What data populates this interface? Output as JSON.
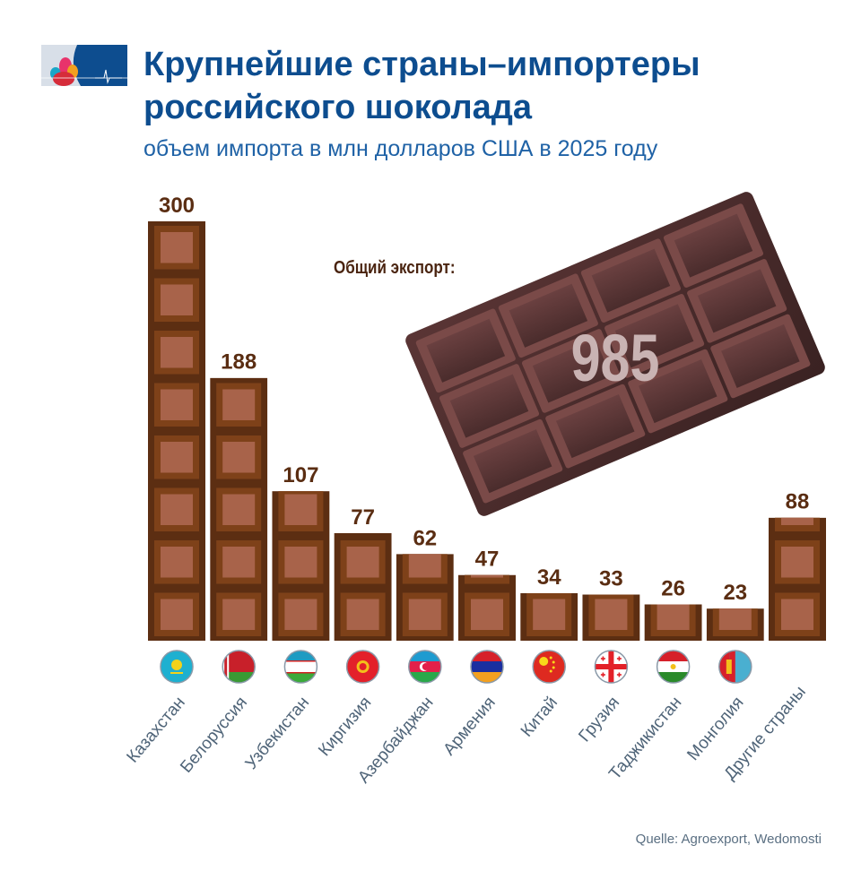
{
  "header": {
    "title_line1": "Крупнейшие страны–импортеры",
    "title_line2": "российского шоколада",
    "subtitle": "объем импорта в млн долларов США в 2025 году"
  },
  "total": {
    "label": "Общий экспорт:",
    "value": "985"
  },
  "source": "Quelle: Agroexport, Wedomosti",
  "colors": {
    "title": "#0d4d8f",
    "bar_dark": "#5c2e12",
    "bar_mid": "#7e4119",
    "bar_inner": "#a8634a",
    "value_label": "#5a2d12",
    "country_label": "#4f6478"
  },
  "chart_data": {
    "type": "bar",
    "title": "Крупнейшие страны–импортеры российского шоколада",
    "subtitle": "объем импорта в млн долларов США в 2025 году",
    "categories": [
      "Казахстан",
      "Белоруссия",
      "Узбекистан",
      "Киргизия",
      "Азербайджан",
      "Армения",
      "Китай",
      "Грузия",
      "Таджикистан",
      "Монголия",
      "Другие страны"
    ],
    "values": [
      300,
      188,
      107,
      77,
      62,
      47,
      34,
      33,
      26,
      23,
      88
    ],
    "flags": [
      "kazakhstan-flag",
      "belarus-flag",
      "uzbekistan-flag",
      "kyrgyzstan-flag",
      "azerbaijan-flag",
      "armenia-flag",
      "china-flag",
      "georgia-flag",
      "tajikistan-flag",
      "mongolia-flag",
      null
    ],
    "ylim": [
      0,
      300
    ],
    "grid": false,
    "data_labels": true
  }
}
